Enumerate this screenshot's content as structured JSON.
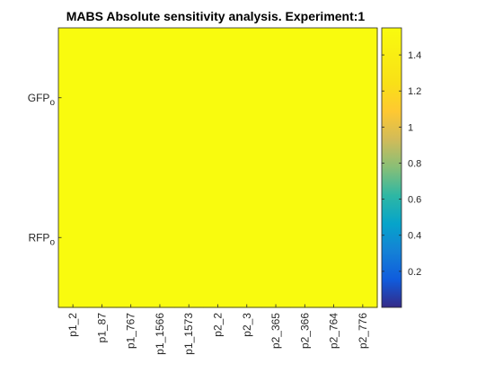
{
  "chart_data": {
    "type": "heatmap",
    "title": "MABS Absolute sensitivity analysis. Experiment:1",
    "xlabel": "",
    "ylabel": "",
    "x_categories": [
      "p1_2",
      "p1_87",
      "p1_767",
      "p1_1566",
      "p1_1573",
      "p2_2",
      "p2_3",
      "p2_365",
      "p2_366",
      "p2_764",
      "p2_776"
    ],
    "y_categories": [
      {
        "base": "GFP",
        "sub": "o"
      },
      {
        "base": "RFP",
        "sub": "o"
      }
    ],
    "values": [
      [
        1.55,
        1.55,
        1.55,
        1.55,
        1.55,
        1.55,
        1.55,
        1.55,
        1.55,
        1.55,
        1.55
      ],
      [
        1.55,
        1.55,
        1.55,
        1.55,
        1.55,
        1.55,
        1.55,
        1.55,
        1.55,
        1.55,
        1.55
      ]
    ],
    "colorbar": {
      "colormap": "parula",
      "range": [
        0.0,
        1.55
      ],
      "ticks": [
        0.2,
        0.4,
        0.6,
        0.8,
        1.0,
        1.2,
        1.4
      ],
      "tick_labels": [
        "0.2",
        "0.4",
        "0.6",
        "0.8",
        "1",
        "1.2",
        "1.4"
      ]
    },
    "grid": false,
    "legend": "colorbar-right"
  }
}
